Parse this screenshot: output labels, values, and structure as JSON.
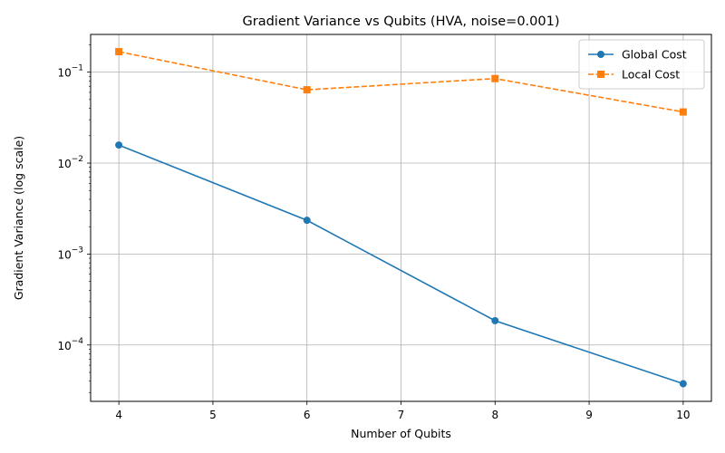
{
  "chart_data": {
    "type": "line",
    "title": "Gradient Variance vs Qubits (HVA, noise=0.001)",
    "xlabel": "Number of Qubits",
    "ylabel": "Gradient Variance (log scale)",
    "y_scale": "log",
    "xlim": [
      3.7,
      10.3
    ],
    "ylim": [
      2.4e-05,
      0.26
    ],
    "x_ticks": [
      4,
      5,
      6,
      7,
      8,
      9,
      10
    ],
    "y_ticks": [
      {
        "value": 0.0001,
        "base": "10",
        "exp": "−4"
      },
      {
        "value": 0.001,
        "base": "10",
        "exp": "−3"
      },
      {
        "value": 0.01,
        "base": "10",
        "exp": "−2"
      },
      {
        "value": 0.1,
        "base": "10",
        "exp": "−1"
      }
    ],
    "grid": true,
    "legend_position": "top-right",
    "x": [
      4,
      6,
      8,
      10
    ],
    "series": [
      {
        "name": "Global Cost",
        "values": [
          0.0158,
          0.00235,
          0.000185,
          3.75e-05
        ],
        "color": "#1f77b4",
        "marker": "circle",
        "line": "solid"
      },
      {
        "name": "Local Cost",
        "values": [
          0.168,
          0.064,
          0.085,
          0.0365
        ],
        "color": "#ff7f0e",
        "marker": "square",
        "line": "dashed"
      }
    ]
  }
}
